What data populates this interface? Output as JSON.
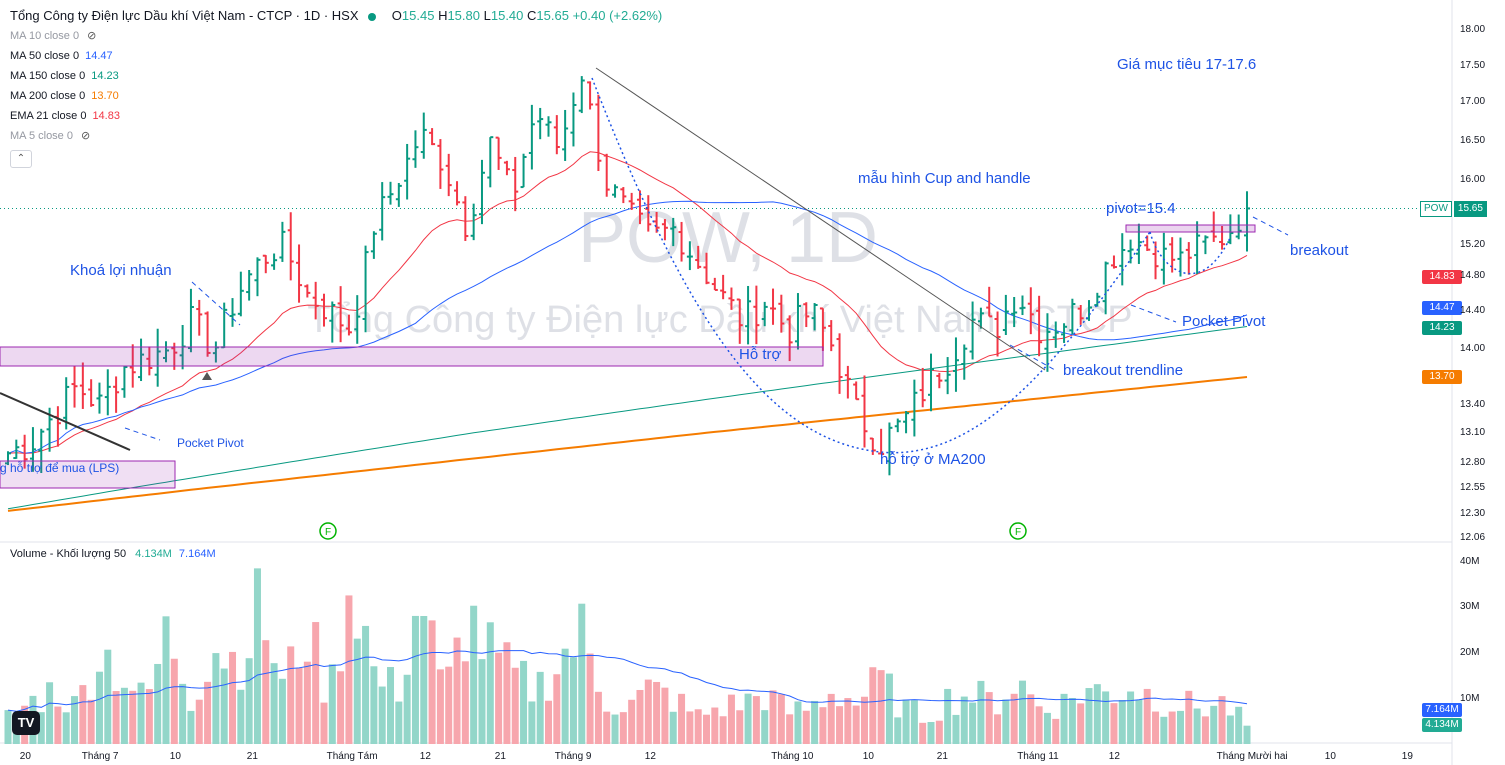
{
  "header": {
    "title": "Tổng Công ty Điện lực Dầu khí Việt Nam - CTCP · 1D · HSX",
    "o_label": "O",
    "o": "15.45",
    "h_label": "H",
    "h": "15.80",
    "l_label": "L",
    "l": "15.40",
    "c_label": "C",
    "c": "15.65",
    "change": "+0.40 (+2.62%)"
  },
  "indicators": [
    {
      "label": "MA 10 close 0",
      "value": "",
      "hidden": true,
      "color": "#9598a1"
    },
    {
      "label": "MA 50 close 0",
      "value": "14.47",
      "hidden": false,
      "color": "#2962ff"
    },
    {
      "label": "MA 150 close 0",
      "value": "14.23",
      "hidden": false,
      "color": "#089981"
    },
    {
      "label": "MA 200 close 0",
      "value": "13.70",
      "hidden": false,
      "color": "#f57c00"
    },
    {
      "label": "EMA 21 close 0",
      "value": "14.83",
      "hidden": false,
      "color": "#f23645"
    },
    {
      "label": "MA 5 close 0",
      "value": "",
      "hidden": true,
      "color": "#9598a1"
    }
  ],
  "volume_legend": {
    "label": "Volume - Khối lượng 50",
    "v1": "4.134M",
    "v2": "7.164M"
  },
  "watermark": {
    "line1": "POW, 1D",
    "line2": "Tổng Công ty Điện lực Dầu khí Việt Nam - CTCP"
  },
  "annotations": {
    "target": "Giá mục tiêu 17-17.6",
    "cup": "mẫu hình Cup and handle",
    "pivot": "pivot=15.4",
    "breakout": "breakout",
    "take_profit": "Khoá lợi nhuận",
    "support": "Hỗ trợ",
    "pocket_pivot_right": "Pocket Pivot",
    "breakout_trendline": "breakout trendline",
    "ma200_support": "hỗ trợ ở MA200",
    "pocket_pivot_left": "Pocket Pivot",
    "lps": "g hỗ trợ để mua (LPS)"
  },
  "price_tags": {
    "symbol": "POW",
    "last": "15.65",
    "ema21": "14.83",
    "ma50": "14.47",
    "ma150": "14.23",
    "ma200": "13.70",
    "vol_ma": "7.164M",
    "vol": "4.134M"
  },
  "colors": {
    "up": "#089981",
    "down": "#f23645",
    "ma50": "#2962ff",
    "ma150": "#089981",
    "ma200": "#f57c00",
    "ema21": "#f23645",
    "zone": "#9c27b0"
  },
  "chart_data": {
    "type": "candlestick",
    "symbol": "POW",
    "interval": "1D",
    "price_ticks": [
      "18.00",
      "17.50",
      "17.00",
      "16.50",
      "16.00",
      "15.20",
      "14.80",
      "14.40",
      "14.00",
      "13.40",
      "13.10",
      "12.80",
      "12.55",
      "12.30",
      "12.06"
    ],
    "volume_ticks": [
      "40M",
      "30M",
      "20M",
      "10M"
    ],
    "x_labels": [
      "20",
      "Tháng 7",
      "10",
      "21",
      "Tháng Tám",
      "12",
      "21",
      "Tháng 9",
      "12",
      "Tháng 10",
      "10",
      "21",
      "Tháng 11",
      "12",
      "Tháng Mười hai",
      "10",
      "19"
    ],
    "ylim": [
      12.06,
      18.0
    ],
    "last_close": 15.65,
    "close_path": [
      12.9,
      13.0,
      13.3,
      13.6,
      13.4,
      13.8,
      13.9,
      14.0,
      14.3,
      14.0,
      14.6,
      15.0,
      15.2,
      14.6,
      14.4,
      14.2,
      15.5,
      16.0,
      16.6,
      16.2,
      15.4,
      16.5,
      15.8,
      16.9,
      16.4,
      17.4,
      16.0,
      15.6,
      15.3,
      15.4,
      15.0,
      14.6,
      14.3,
      14.5,
      14.2,
      14.4,
      14.0,
      13.3,
      13.0,
      13.2,
      13.6,
      13.9,
      14.3,
      14.2,
      14.6,
      14.2,
      14.3,
      14.5,
      15.0,
      15.3,
      15.1,
      15.0,
      15.2,
      15.3,
      15.65
    ],
    "volume_path": [
      6,
      9,
      12,
      8,
      21,
      15,
      9,
      25,
      10,
      22,
      18,
      30,
      12,
      26,
      10,
      39,
      14,
      12,
      33,
      10,
      28,
      20,
      15,
      12,
      18,
      24,
      10,
      8,
      12,
      10,
      6,
      8,
      9,
      11,
      7,
      8,
      12,
      9,
      14,
      8,
      6,
      10,
      11,
      9,
      14,
      8,
      9,
      12,
      11,
      13,
      10,
      9,
      8,
      9,
      4.1
    ],
    "series": [
      {
        "name": "MA 50",
        "last": 14.47
      },
      {
        "name": "MA 150",
        "last": 14.23
      },
      {
        "name": "MA 200",
        "last": 13.7
      },
      {
        "name": "EMA 21",
        "last": 14.83
      }
    ]
  }
}
